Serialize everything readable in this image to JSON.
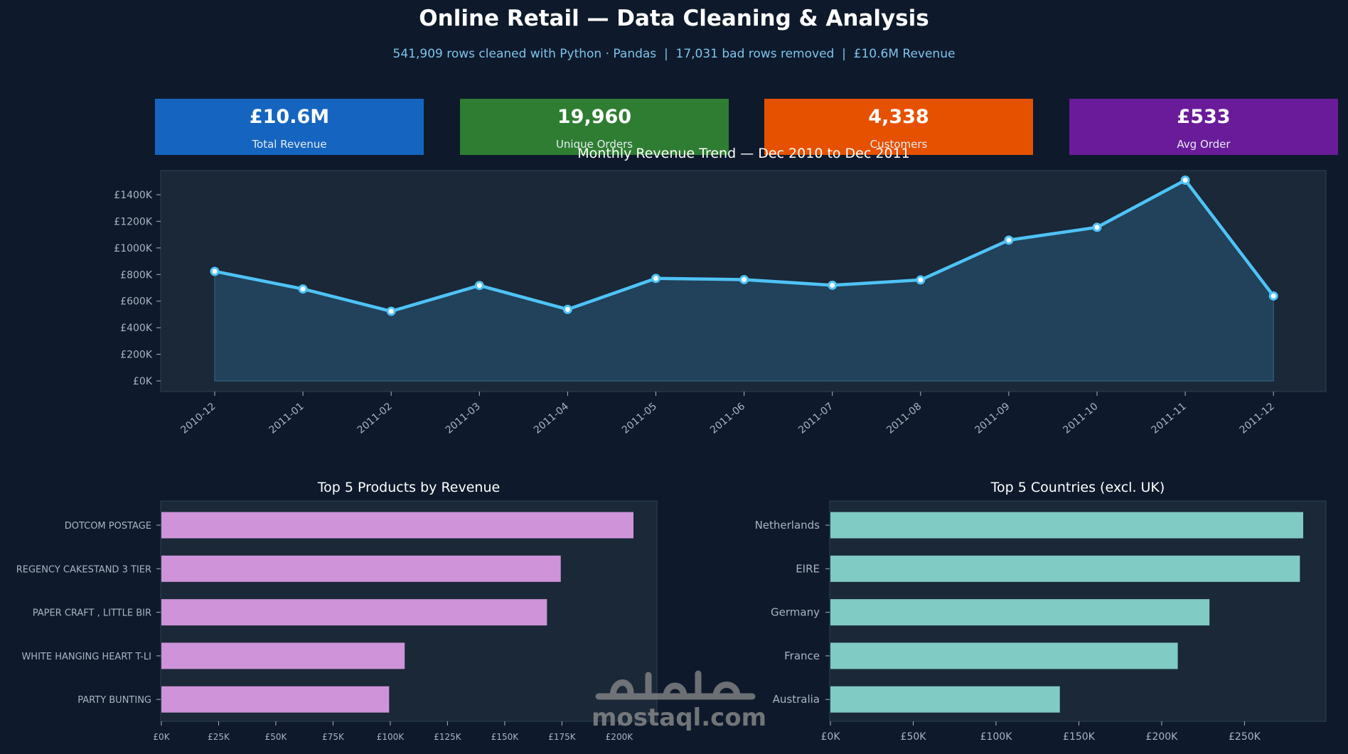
{
  "header": {
    "title": "Online Retail — Data Cleaning & Analysis",
    "subtitle": "541,909 rows cleaned with Python · Pandas  |  17,031 bad rows removed  |  £10.6M Revenue"
  },
  "kpis": [
    {
      "value": "£10.6M",
      "label": "Total Revenue",
      "color": "#1565c0"
    },
    {
      "value": "19,960",
      "label": "Unique Orders",
      "color": "#2e7d32"
    },
    {
      "value": "4,338",
      "label": "Customers",
      "color": "#e65100"
    },
    {
      "value": "£533",
      "label": "Avg Order",
      "color": "#6a1b9a"
    }
  ],
  "chart_data": [
    {
      "type": "line",
      "title": "Monthly Revenue Trend — Dec 2010 to Dec 2011",
      "x": [
        "2010-12",
        "2011-01",
        "2011-02",
        "2011-03",
        "2011-04",
        "2011-05",
        "2011-06",
        "2011-07",
        "2011-08",
        "2011-09",
        "2011-10",
        "2011-11",
        "2011-12"
      ],
      "values": [
        823746,
        691365,
        523631,
        717639,
        537808,
        770536,
        761739,
        719221,
        759139,
        1058590,
        1154979,
        1509496,
        638792
      ],
      "ylim": [
        0,
        1500000
      ],
      "yticks": [
        "£0K",
        "£200K",
        "£400K",
        "£600K",
        "£800K",
        "£1000K",
        "£1200K",
        "£1400K"
      ],
      "fill": true,
      "color": "#4fc3f7"
    },
    {
      "type": "bar",
      "orientation": "horizontal",
      "title": "Top 5 Products by Revenue",
      "categories": [
        "DOTCOM POSTAGE",
        "REGENCY CAKESTAND 3 TIER",
        "PAPER CRAFT , LITTLE BIR",
        "WHITE HANGING HEART T-LI",
        "PARTY BUNTING"
      ],
      "values": [
        206248,
        174484,
        168469,
        106292,
        99504
      ],
      "xticks": [
        "£0K",
        "£25K",
        "£50K",
        "£75K",
        "£100K",
        "£125K",
        "£150K",
        "£175K",
        "£200K"
      ],
      "color": "#ce93d8"
    },
    {
      "type": "bar",
      "orientation": "horizontal",
      "title": "Top 5 Countries (excl. UK)",
      "categories": [
        "Netherlands",
        "EIRE",
        "Germany",
        "France",
        "Australia"
      ],
      "values": [
        285446,
        283453,
        228867,
        209715,
        138521
      ],
      "xticks": [
        "£0K",
        "£50K",
        "£100K",
        "£150K",
        "£200K",
        "£250K"
      ],
      "color": "#80cbc4"
    }
  ],
  "watermark": {
    "arabic": "مستقل",
    "latin": "mostaql.com"
  }
}
